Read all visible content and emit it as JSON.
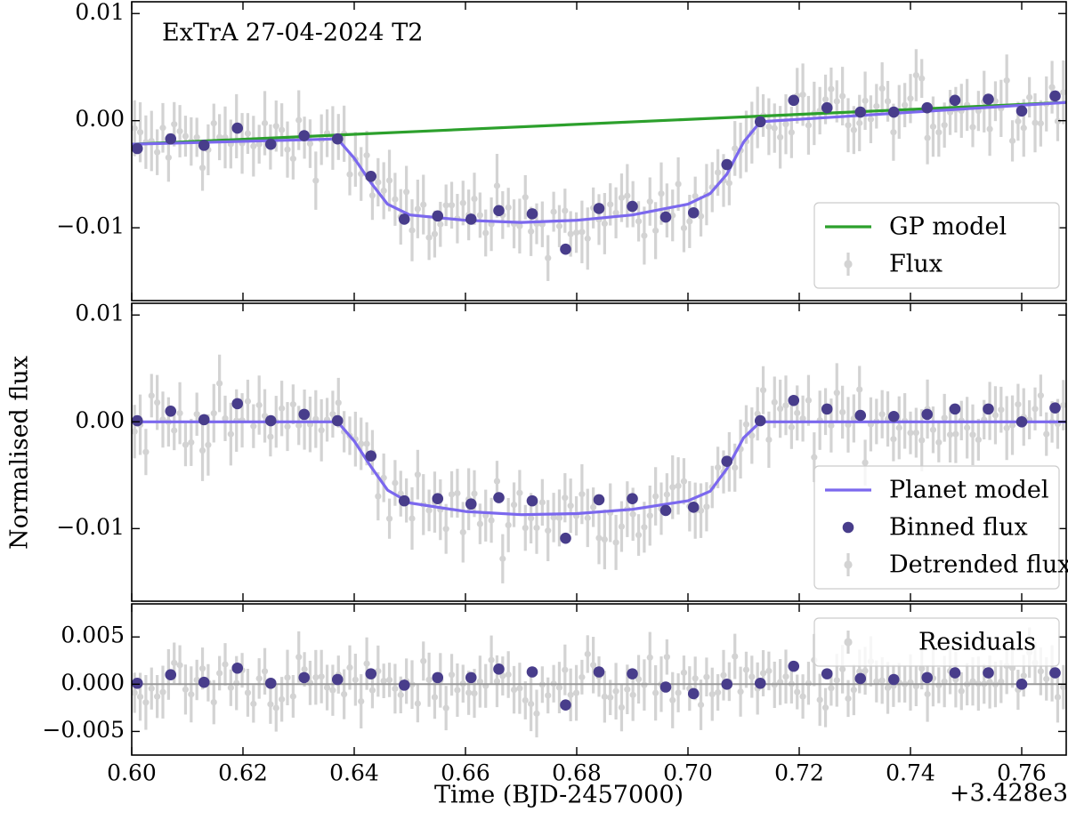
{
  "figure": {
    "title": "ExTrA 27-04-2024 T2",
    "xlabel": "Time (BJD-2457000)",
    "ylabel": "Normalised flux",
    "x_offset_label": "+3.428e3",
    "x_offset": 3428,
    "xlim": [
      3428.6,
      3428.768
    ],
    "xticks": [
      3428.6,
      3428.62,
      3428.64,
      3428.66,
      3428.68,
      3428.7,
      3428.72,
      3428.74,
      3428.76
    ],
    "xtick_labels": [
      "0.60",
      "0.62",
      "0.64",
      "0.66",
      "0.68",
      "0.70",
      "0.72",
      "0.74",
      "0.76"
    ]
  },
  "chart_data": [
    {
      "type": "scatter",
      "panel": "top",
      "title": "ExTrA 27-04-2024 T2",
      "ylim": [
        -0.0168,
        0.0111
      ],
      "yticks": [
        -0.01,
        0.0,
        0.01
      ],
      "ytick_labels": [
        "−0.01",
        "0.00",
        "0.01"
      ],
      "legend": {
        "placement": "lower-right",
        "entries": [
          "GP model",
          "Flux"
        ]
      },
      "series": [
        {
          "name": "GP model",
          "kind": "line",
          "color": "#2ca02c",
          "x": [
            3428.6,
            3428.768
          ],
          "y": [
            -0.0022,
            0.0017
          ]
        },
        {
          "name": "Flux",
          "kind": "errorbar",
          "color": "#d3d3d3"
        },
        {
          "kind": "line",
          "color": "#7b68ee",
          "note_shape": "gp+transit",
          "x": [
            3428.6,
            3428.637,
            3428.64,
            3428.643,
            3428.646,
            3428.65,
            3428.66,
            3428.67,
            3428.68,
            3428.69,
            3428.7,
            3428.704,
            3428.707,
            3428.71,
            3428.713,
            3428.768
          ],
          "y": [
            -0.0022,
            -0.0017,
            -0.0035,
            -0.0058,
            -0.0078,
            -0.0088,
            -0.0093,
            -0.0095,
            -0.0093,
            -0.0088,
            -0.0078,
            -0.0068,
            -0.005,
            -0.002,
            -0.0001,
            0.0017
          ]
        },
        {
          "kind": "points",
          "color": "#483d8b",
          "x": [
            3428.601,
            3428.607,
            3428.613,
            3428.619,
            3428.625,
            3428.631,
            3428.637,
            3428.643,
            3428.649,
            3428.655,
            3428.661,
            3428.666,
            3428.672,
            3428.678,
            3428.684,
            3428.69,
            3428.696,
            3428.701,
            3428.707,
            3428.713,
            3428.719,
            3428.725,
            3428.731,
            3428.737,
            3428.743,
            3428.748,
            3428.754,
            3428.76,
            3428.766
          ],
          "y": [
            -0.0026,
            -0.0017,
            -0.0023,
            -0.0007,
            -0.0022,
            -0.0014,
            -0.0017,
            -0.0052,
            -0.0092,
            -0.0089,
            -0.0092,
            -0.0084,
            -0.0087,
            -0.012,
            -0.0082,
            -0.008,
            -0.009,
            -0.0086,
            -0.0041,
            -0.0001,
            0.0019,
            0.0012,
            0.0008,
            0.0008,
            0.0012,
            0.0019,
            0.002,
            0.0009,
            0.0023
          ]
        }
      ]
    },
    {
      "type": "scatter",
      "panel": "middle",
      "ylim": [
        -0.0168,
        0.0111
      ],
      "yticks": [
        -0.01,
        0.0,
        0.01
      ],
      "ytick_labels": [
        "−0.01",
        "0.00",
        "0.01"
      ],
      "legend": {
        "placement": "lower-right",
        "entries": [
          "Planet model",
          "Binned flux",
          "Detrended flux"
        ]
      },
      "series": [
        {
          "name": "Planet model",
          "kind": "line",
          "color": "#7b68ee",
          "x": [
            3428.6,
            3428.637,
            3428.64,
            3428.643,
            3428.646,
            3428.65,
            3428.66,
            3428.67,
            3428.68,
            3428.69,
            3428.7,
            3428.704,
            3428.707,
            3428.71,
            3428.713,
            3428.768
          ],
          "y": [
            0.0,
            0.0,
            -0.0018,
            -0.0042,
            -0.0064,
            -0.0076,
            -0.0084,
            -0.0087,
            -0.0086,
            -0.0082,
            -0.0074,
            -0.0065,
            -0.0044,
            -0.0015,
            0.0,
            0.0
          ]
        },
        {
          "name": "Binned flux",
          "kind": "points",
          "color": "#483d8b",
          "x": [
            3428.601,
            3428.607,
            3428.613,
            3428.619,
            3428.625,
            3428.631,
            3428.637,
            3428.643,
            3428.649,
            3428.655,
            3428.661,
            3428.666,
            3428.672,
            3428.678,
            3428.684,
            3428.69,
            3428.696,
            3428.701,
            3428.707,
            3428.713,
            3428.719,
            3428.725,
            3428.731,
            3428.737,
            3428.743,
            3428.748,
            3428.754,
            3428.76,
            3428.766
          ],
          "y": [
            0.0001,
            0.001,
            0.0002,
            0.0017,
            0.0001,
            0.0007,
            0.0001,
            -0.0032,
            -0.0074,
            -0.0072,
            -0.0077,
            -0.0071,
            -0.0074,
            -0.0109,
            -0.0073,
            -0.0072,
            -0.0083,
            -0.008,
            -0.0037,
            0.0001,
            0.002,
            0.0012,
            0.0006,
            0.0005,
            0.0007,
            0.0012,
            0.0012,
            0.0,
            0.0013
          ]
        },
        {
          "name": "Detrended flux",
          "kind": "errorbar",
          "color": "#d3d3d3"
        }
      ]
    },
    {
      "type": "scatter",
      "panel": "bottom",
      "ylim": [
        -0.0075,
        0.0085
      ],
      "yticks": [
        -0.005,
        0.0,
        0.005
      ],
      "ytick_labels": [
        "−0.005",
        "0.000",
        "0.005"
      ],
      "legend": {
        "placement": "upper-right",
        "entries": [
          "Residuals"
        ]
      },
      "series": [
        {
          "kind": "line",
          "color": "#999999",
          "x": [
            3428.6,
            3428.768
          ],
          "y": [
            0.0,
            0.0
          ]
        },
        {
          "name": "Residuals",
          "kind": "errorbar",
          "color": "#d3d3d3"
        },
        {
          "kind": "points",
          "color": "#483d8b",
          "x": [
            3428.601,
            3428.607,
            3428.613,
            3428.619,
            3428.625,
            3428.631,
            3428.637,
            3428.643,
            3428.649,
            3428.655,
            3428.661,
            3428.666,
            3428.672,
            3428.678,
            3428.684,
            3428.69,
            3428.696,
            3428.701,
            3428.707,
            3428.713,
            3428.719,
            3428.725,
            3428.731,
            3428.737,
            3428.743,
            3428.748,
            3428.754,
            3428.76,
            3428.766
          ],
          "y": [
            0.0001,
            0.001,
            0.0002,
            0.0017,
            0.0001,
            0.0007,
            0.0005,
            0.0011,
            -0.0001,
            0.0007,
            0.0007,
            0.0016,
            0.0013,
            -0.0022,
            0.0013,
            0.0011,
            -0.0003,
            -0.001,
            0.0,
            0.0001,
            0.0019,
            0.0011,
            0.0006,
            0.0005,
            0.0007,
            0.0012,
            0.0012,
            0.0,
            0.0012
          ]
        }
      ]
    }
  ]
}
